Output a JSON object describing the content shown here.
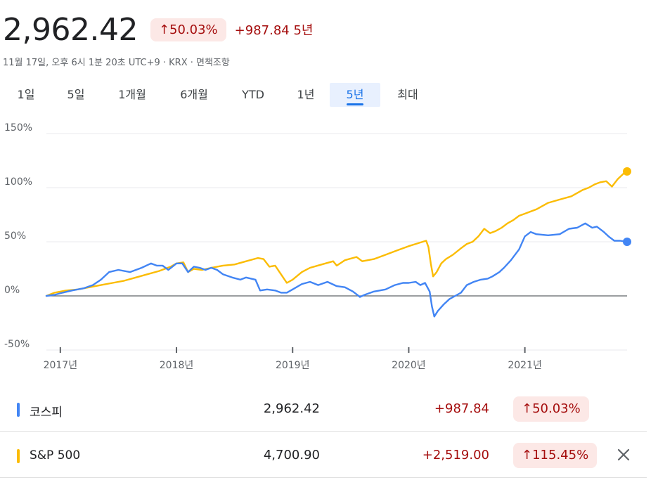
{
  "header": {
    "price": "2,962.42",
    "pct_change": "↑50.03%",
    "abs_change": "+987.84 5년",
    "subline": "11월 17일, 오후 6시 1분 20초 UTC+9 · KRX · 면책조항"
  },
  "tabs": [
    {
      "label": "1일"
    },
    {
      "label": "5일"
    },
    {
      "label": "1개월"
    },
    {
      "label": "6개월"
    },
    {
      "label": "YTD"
    },
    {
      "label": "1년"
    },
    {
      "label": "5년",
      "active": true
    },
    {
      "label": "최대"
    }
  ],
  "colors": {
    "kospi": "#4285f4",
    "sp500": "#fbbc04",
    "negative_text": "#a50e0e",
    "chip_bg": "#fce8e6",
    "grid": "#e8eaed",
    "zero_line": "#5f6368"
  },
  "chart_data": {
    "type": "line",
    "y_ticks": [
      "150%",
      "100%",
      "50%",
      "0%",
      "-50%"
    ],
    "y_tick_values": [
      150,
      100,
      50,
      0,
      -50
    ],
    "ylim": [
      -50,
      150
    ],
    "x_ticks": [
      "2017년",
      "2018년",
      "2019년",
      "2020년",
      "2021년"
    ],
    "x_tick_values": [
      2017.0,
      2018.0,
      2019.0,
      2020.0,
      2021.0
    ],
    "xlim": [
      2016.88,
      2021.88
    ],
    "grid": true,
    "legend": "bottom",
    "series": [
      {
        "name": "코스피",
        "color": "#4285f4",
        "points": [
          [
            2016.88,
            0
          ],
          [
            2016.95,
            1
          ],
          [
            2017.02,
            3
          ],
          [
            2017.1,
            5
          ],
          [
            2017.2,
            7
          ],
          [
            2017.28,
            10
          ],
          [
            2017.35,
            15
          ],
          [
            2017.42,
            22
          ],
          [
            2017.5,
            24
          ],
          [
            2017.6,
            22
          ],
          [
            2017.7,
            26
          ],
          [
            2017.78,
            30
          ],
          [
            2017.83,
            28
          ],
          [
            2017.88,
            28
          ],
          [
            2017.93,
            24
          ],
          [
            2018.0,
            30
          ],
          [
            2018.05,
            30
          ],
          [
            2018.1,
            22
          ],
          [
            2018.15,
            27
          ],
          [
            2018.2,
            26
          ],
          [
            2018.25,
            24
          ],
          [
            2018.3,
            26
          ],
          [
            2018.35,
            24
          ],
          [
            2018.4,
            20
          ],
          [
            2018.48,
            17
          ],
          [
            2018.55,
            15
          ],
          [
            2018.6,
            17
          ],
          [
            2018.68,
            15
          ],
          [
            2018.72,
            5
          ],
          [
            2018.78,
            6
          ],
          [
            2018.85,
            5
          ],
          [
            2018.9,
            3
          ],
          [
            2018.95,
            3
          ],
          [
            2019.0,
            6
          ],
          [
            2019.08,
            11
          ],
          [
            2019.15,
            13
          ],
          [
            2019.22,
            10
          ],
          [
            2019.3,
            13
          ],
          [
            2019.38,
            9
          ],
          [
            2019.45,
            8
          ],
          [
            2019.52,
            4
          ],
          [
            2019.58,
            -1
          ],
          [
            2019.62,
            1
          ],
          [
            2019.7,
            4
          ],
          [
            2019.8,
            6
          ],
          [
            2019.88,
            10
          ],
          [
            2019.95,
            12
          ],
          [
            2020.0,
            12
          ],
          [
            2020.06,
            13
          ],
          [
            2020.1,
            10
          ],
          [
            2020.14,
            12
          ],
          [
            2020.18,
            4
          ],
          [
            2020.2,
            -10
          ],
          [
            2020.22,
            -19
          ],
          [
            2020.25,
            -14
          ],
          [
            2020.3,
            -8
          ],
          [
            2020.35,
            -3
          ],
          [
            2020.4,
            0
          ],
          [
            2020.45,
            3
          ],
          [
            2020.5,
            10
          ],
          [
            2020.56,
            13
          ],
          [
            2020.62,
            15
          ],
          [
            2020.68,
            16
          ],
          [
            2020.72,
            18
          ],
          [
            2020.78,
            22
          ],
          [
            2020.82,
            26
          ],
          [
            2020.88,
            33
          ],
          [
            2020.95,
            43
          ],
          [
            2021.0,
            55
          ],
          [
            2021.05,
            59
          ],
          [
            2021.1,
            57
          ],
          [
            2021.2,
            56
          ],
          [
            2021.3,
            57
          ],
          [
            2021.38,
            62
          ],
          [
            2021.45,
            63
          ],
          [
            2021.52,
            67
          ],
          [
            2021.58,
            63
          ],
          [
            2021.62,
            64
          ],
          [
            2021.68,
            59
          ],
          [
            2021.72,
            55
          ],
          [
            2021.77,
            51
          ],
          [
            2021.82,
            51
          ],
          [
            2021.88,
            50
          ]
        ]
      },
      {
        "name": "S&P 500",
        "color": "#fbbc04",
        "points": [
          [
            2016.88,
            0
          ],
          [
            2016.95,
            3
          ],
          [
            2017.05,
            5
          ],
          [
            2017.15,
            6
          ],
          [
            2017.25,
            8
          ],
          [
            2017.35,
            10
          ],
          [
            2017.45,
            12
          ],
          [
            2017.55,
            14
          ],
          [
            2017.65,
            17
          ],
          [
            2017.75,
            20
          ],
          [
            2017.85,
            23
          ],
          [
            2017.95,
            27
          ],
          [
            2018.0,
            30
          ],
          [
            2018.06,
            31
          ],
          [
            2018.1,
            22
          ],
          [
            2018.15,
            25
          ],
          [
            2018.22,
            24
          ],
          [
            2018.3,
            26
          ],
          [
            2018.4,
            28
          ],
          [
            2018.5,
            29
          ],
          [
            2018.6,
            32
          ],
          [
            2018.7,
            35
          ],
          [
            2018.75,
            34
          ],
          [
            2018.8,
            27
          ],
          [
            2018.85,
            28
          ],
          [
            2018.9,
            20
          ],
          [
            2018.95,
            12
          ],
          [
            2019.0,
            15
          ],
          [
            2019.08,
            22
          ],
          [
            2019.15,
            26
          ],
          [
            2019.25,
            29
          ],
          [
            2019.35,
            32
          ],
          [
            2019.38,
            28
          ],
          [
            2019.45,
            33
          ],
          [
            2019.55,
            36
          ],
          [
            2019.6,
            32
          ],
          [
            2019.7,
            34
          ],
          [
            2019.8,
            38
          ],
          [
            2019.9,
            42
          ],
          [
            2020.0,
            46
          ],
          [
            2020.06,
            48
          ],
          [
            2020.12,
            50
          ],
          [
            2020.15,
            51
          ],
          [
            2020.17,
            45
          ],
          [
            2020.19,
            30
          ],
          [
            2020.21,
            18
          ],
          [
            2020.24,
            22
          ],
          [
            2020.28,
            30
          ],
          [
            2020.32,
            34
          ],
          [
            2020.38,
            38
          ],
          [
            2020.45,
            44
          ],
          [
            2020.5,
            48
          ],
          [
            2020.55,
            50
          ],
          [
            2020.6,
            55
          ],
          [
            2020.65,
            62
          ],
          [
            2020.7,
            58
          ],
          [
            2020.75,
            60
          ],
          [
            2020.8,
            63
          ],
          [
            2020.85,
            67
          ],
          [
            2020.9,
            70
          ],
          [
            2020.95,
            74
          ],
          [
            2021.0,
            76
          ],
          [
            2021.1,
            80
          ],
          [
            2021.2,
            86
          ],
          [
            2021.3,
            89
          ],
          [
            2021.4,
            92
          ],
          [
            2021.5,
            98
          ],
          [
            2021.55,
            100
          ],
          [
            2021.6,
            103
          ],
          [
            2021.65,
            105
          ],
          [
            2021.7,
            106
          ],
          [
            2021.75,
            101
          ],
          [
            2021.8,
            108
          ],
          [
            2021.85,
            113
          ],
          [
            2021.88,
            115
          ]
        ]
      }
    ]
  },
  "legend": [
    {
      "name": "코스피",
      "value": "2,962.42",
      "change": "+987.84",
      "pct": "↑50.03%",
      "color": "#4285f4"
    },
    {
      "name": "S&P 500",
      "value": "4,700.90",
      "change": "+2,519.00",
      "pct": "↑115.45%",
      "color": "#fbbc04",
      "close_icon": "close-icon"
    }
  ]
}
